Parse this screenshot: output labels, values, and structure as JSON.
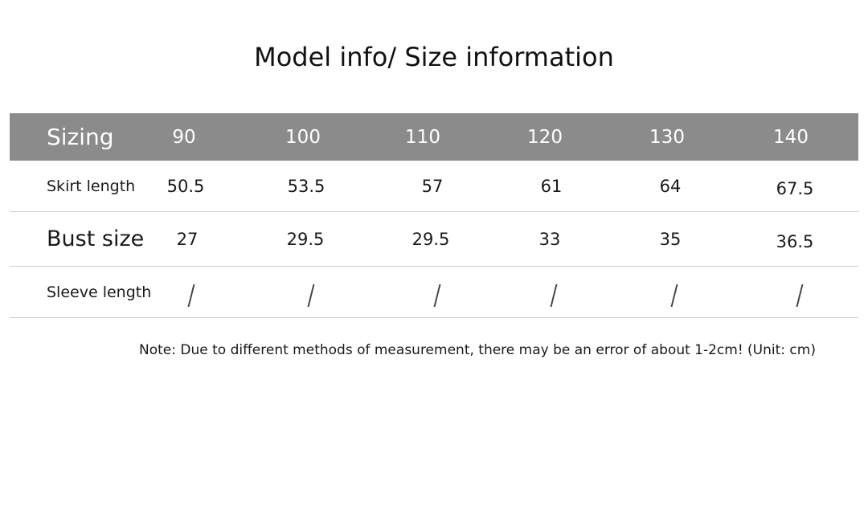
{
  "title": "Model info/ Size information",
  "table": {
    "header": {
      "label": "Sizing",
      "values": [
        "90",
        "100",
        "110",
        "120",
        "130",
        "140"
      ]
    },
    "rows": [
      {
        "label": "Skirt length",
        "values": [
          "50.5",
          "53.5",
          "57",
          "61",
          "64",
          "67.5"
        ]
      },
      {
        "label": "Bust size",
        "values": [
          "27",
          "29.5",
          "29.5",
          "33",
          "35",
          "36.5"
        ]
      },
      {
        "label": "Sleeve length",
        "values": [
          "/",
          "/",
          "/",
          "/",
          "/",
          "/"
        ]
      }
    ]
  },
  "note": "Note: Due to different methods of measurement, there may be an error of about 1-2cm! (Unit: cm)"
}
